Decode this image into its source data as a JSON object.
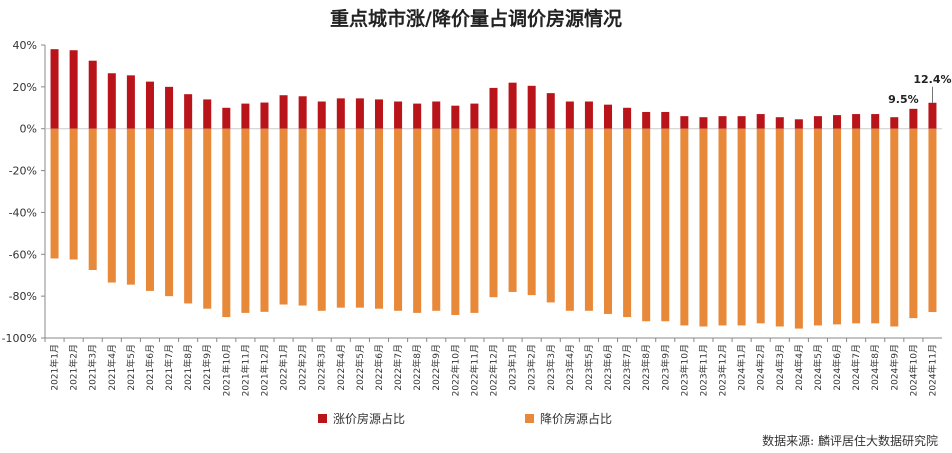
{
  "title": "重点城市涨/降价量占调价房源情况",
  "source": "数据来源: 麟评居住大数据研究院",
  "colors": {
    "up": "#b8141a",
    "down": "#e8893a",
    "axis": "#888888",
    "text": "#333333"
  },
  "chart_data": {
    "type": "bar",
    "title": "重点城市涨/降价量占调价房源情况",
    "ylim": [
      -100,
      40
    ],
    "yticks": [
      40,
      20,
      0,
      -20,
      -40,
      -60,
      -80,
      -100
    ],
    "ytick_labels": [
      "40%",
      "20%",
      "0%",
      "-20%",
      "-40%",
      "-60%",
      "-80%",
      "-100%"
    ],
    "legend_position": "bottom",
    "grid": false,
    "categories": [
      "2021年1月",
      "2021年2月",
      "2021年3月",
      "2021年4月",
      "2021年5月",
      "2021年6月",
      "2021年7月",
      "2021年8月",
      "2021年9月",
      "2021年10月",
      "2021年11月",
      "2021年12月",
      "2022年1月",
      "2022年2月",
      "2022年3月",
      "2022年4月",
      "2022年5月",
      "2022年6月",
      "2022年7月",
      "2022年8月",
      "2022年9月",
      "2022年10月",
      "2022年11月",
      "2022年12月",
      "2023年1月",
      "2023年2月",
      "2023年3月",
      "2023年4月",
      "2023年5月",
      "2023年6月",
      "2023年7月",
      "2023年8月",
      "2023年9月",
      "2023年10月",
      "2023年11月",
      "2023年12月",
      "2024年1月",
      "2024年2月",
      "2024年3月",
      "2024年4月",
      "2024年5月",
      "2024年6月",
      "2024年7月",
      "2024年8月",
      "2024年9月",
      "2024年10月",
      "2024年11月"
    ],
    "series": [
      {
        "name": "涨价房源占比",
        "values": [
          38,
          37.5,
          32.5,
          26.5,
          25.5,
          22.5,
          20,
          16.5,
          14,
          10,
          12,
          12.5,
          16,
          15.5,
          13,
          14.5,
          14.5,
          14,
          13,
          12,
          13,
          11,
          12,
          19.5,
          22,
          20.5,
          17,
          13,
          13,
          11.5,
          10,
          8,
          8,
          6,
          5.5,
          6,
          6,
          7,
          5.5,
          4.5,
          6,
          6.5,
          7,
          7,
          5.5,
          9.5,
          12.4
        ]
      },
      {
        "name": "降价房源占比",
        "values": [
          -62,
          -62.5,
          -67.5,
          -73.5,
          -74.5,
          -77.5,
          -80,
          -83.5,
          -86,
          -90,
          -88,
          -87.5,
          -84,
          -84.5,
          -87,
          -85.5,
          -85.5,
          -86,
          -87,
          -88,
          -87,
          -89,
          -88,
          -80.5,
          -78,
          -79.5,
          -83,
          -87,
          -87,
          -88.5,
          -90,
          -92,
          -92,
          -94,
          -94.5,
          -94,
          -94,
          -93,
          -94.5,
          -95.5,
          -94,
          -93.5,
          -93,
          -93,
          -94.5,
          -90.5,
          -87.6
        ]
      }
    ],
    "annotations": [
      {
        "category": "2024年10月",
        "text": "9.5%"
      },
      {
        "category": "2024年11月",
        "text": "12.4%"
      }
    ]
  }
}
